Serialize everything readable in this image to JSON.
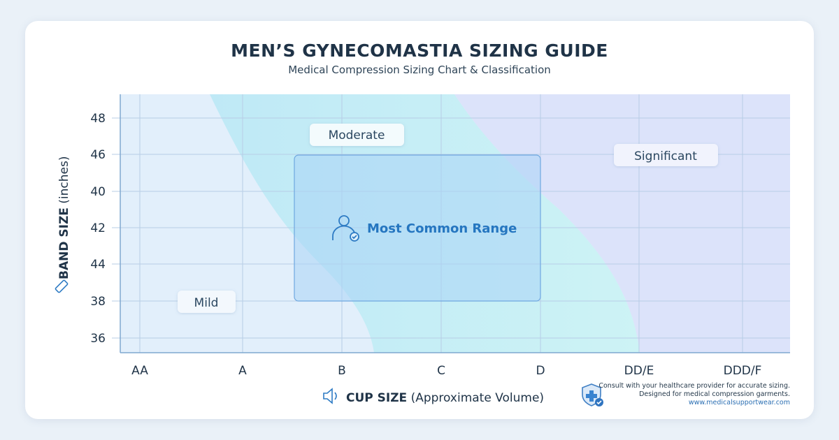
{
  "title": "MEN’S GYNECOMASTIA SIZING GUIDE",
  "subtitle": "Medical Compression Sizing Chart & Classification",
  "chart_data": {
    "type": "area",
    "xlabel_bold": "CUP SIZE",
    "xlabel_rest": " (Approximate Volume)",
    "ylabel_bold": "BAND SIZE",
    "ylabel_rest": " (inches)",
    "x_categories": [
      "AA",
      "A",
      "B",
      "C",
      "D",
      "DD/E",
      "DDD/F"
    ],
    "y_categories": [
      "36",
      "38",
      "44",
      "42",
      "40",
      "46",
      "48"
    ],
    "grid": true,
    "regions": [
      {
        "name": "Mild",
        "color": "#e2effb"
      },
      {
        "name": "Moderate",
        "color": "#c9f0f6"
      },
      {
        "name": "Significant",
        "color": "#dce3fa"
      }
    ],
    "highlight": {
      "label": "Most Common Range",
      "x_range": [
        "B-",
        "D"
      ],
      "y_range": [
        "38",
        "46"
      ],
      "color": "#a9d4f5"
    }
  },
  "footer": {
    "line1": "Consult with your healthcare provider for accurate sizing.",
    "line2": "Designed for medical compression garments.",
    "url": "www.medicalsupportwear.com"
  }
}
